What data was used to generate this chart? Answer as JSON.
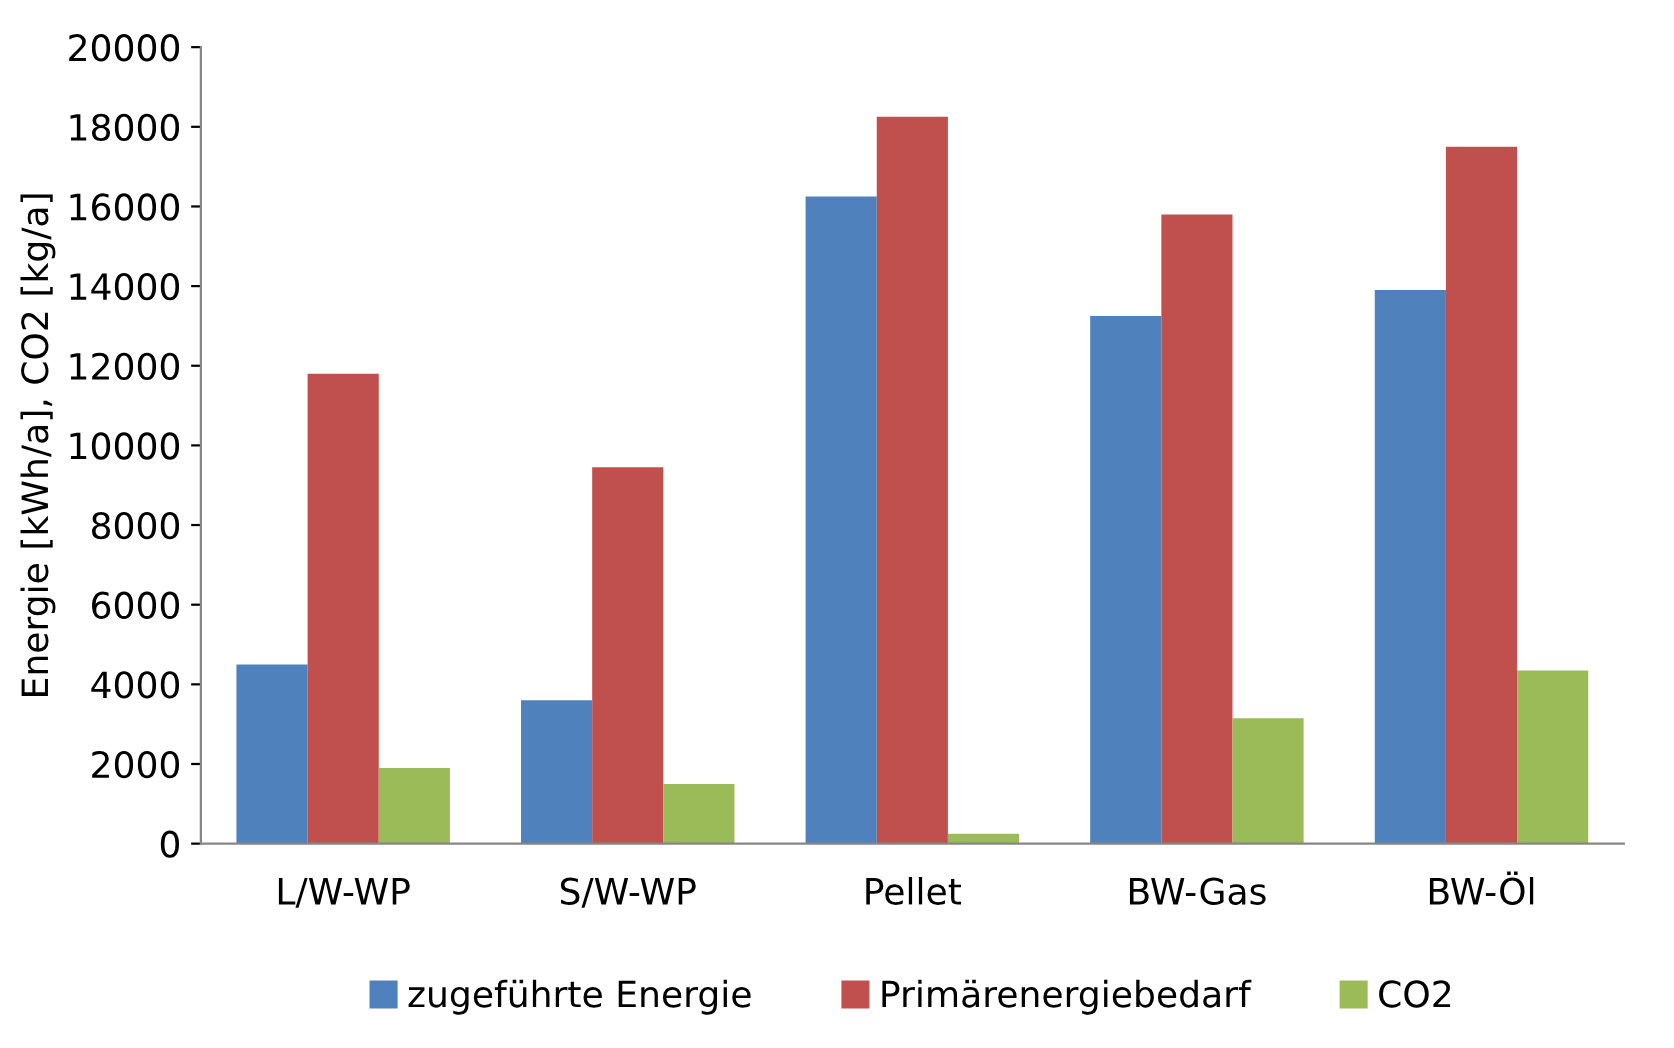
{
  "chart_data": {
    "type": "bar",
    "ylabel": "Energie [kWh/a], CO2 [kg/a]",
    "categories": [
      "L/W-WP",
      "S/W-WP",
      "Pellet",
      "BW-Gas",
      "BW-Öl"
    ],
    "series": [
      {
        "name": "zugeführte Energie",
        "color": "#4f81bd",
        "values": [
          4500,
          3600,
          16250,
          13250,
          13900
        ]
      },
      {
        "name": "Primärenergiebedarf",
        "color": "#c0504d",
        "values": [
          11800,
          9450,
          18250,
          15800,
          17500
        ]
      },
      {
        "name": "CO2",
        "color": "#9bbb59",
        "values": [
          1900,
          1500,
          250,
          3150,
          4350
        ]
      }
    ],
    "ylim": [
      0,
      20000
    ],
    "yticks": [
      0,
      2000,
      4000,
      6000,
      8000,
      10000,
      12000,
      14000,
      16000,
      18000,
      20000
    ],
    "grid": false,
    "legend": "bottom"
  }
}
